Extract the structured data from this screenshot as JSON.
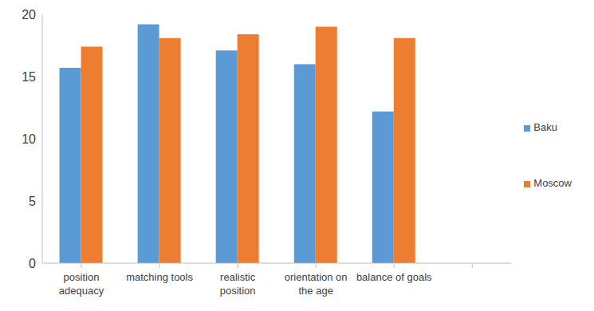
{
  "chart_data": {
    "type": "bar",
    "categories": [
      "position adequacy",
      "matching tools",
      "realistic position",
      "orientation on the age",
      "balance of goals",
      null
    ],
    "series": [
      {
        "name": "Baku",
        "color": "#5b9bd5",
        "values": [
          15.7,
          19.2,
          17.1,
          16.0,
          12.2,
          null
        ]
      },
      {
        "name": "Moscow",
        "color": "#ed7d31",
        "values": [
          17.4,
          18.1,
          18.4,
          19.0,
          18.1,
          null
        ]
      }
    ],
    "ylim": [
      0,
      20
    ],
    "yticks": [
      0,
      5,
      10,
      15,
      20
    ],
    "grid": false,
    "legend": "right"
  }
}
